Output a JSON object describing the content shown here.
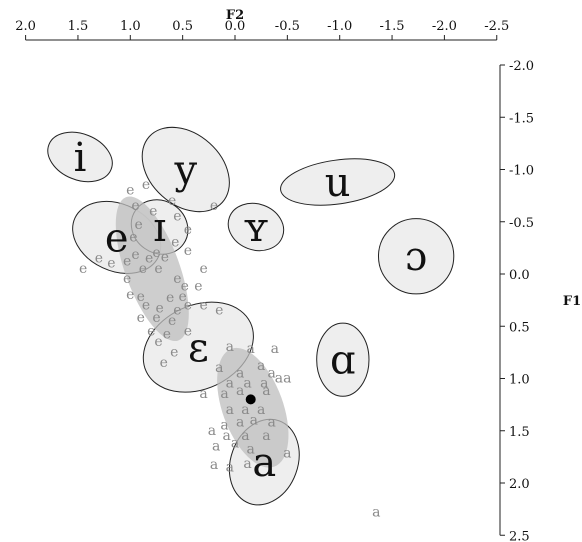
{
  "chart_data": {
    "type": "scatter",
    "title": "",
    "xlabel": "F2",
    "ylabel": "F1",
    "x_reversed": true,
    "y_reversed": true,
    "xlim": [
      2.0,
      -2.5
    ],
    "ylim": [
      -2.0,
      2.5
    ],
    "x_ticks": [
      "2.0",
      "1.5",
      "1.0",
      "0.5",
      "0.0",
      "-0.5",
      "-1.0",
      "-1.5",
      "-2.0",
      "-2.5"
    ],
    "y_ticks": [
      "-2.0",
      "-1.5",
      "-1.0",
      "-0.5",
      "0.0",
      "0.5",
      "1.0",
      "1.5",
      "2.0",
      "2.5"
    ],
    "x_tick_values": [
      2.0,
      1.5,
      1.0,
      0.5,
      0.0,
      -0.5,
      -1.0,
      -1.5,
      -2.0,
      -2.5
    ],
    "y_tick_values": [
      -2.0,
      -1.5,
      -1.0,
      -0.5,
      0.0,
      0.5,
      1.0,
      1.5,
      2.0,
      2.5
    ],
    "x_axis_position": "top",
    "y_axis_position": "right",
    "grid": false,
    "colors": {
      "reference_ellipse_fill": "#ebebeb",
      "token_ellipse_fill": "#bdbdbd",
      "token_color": "#8a8a8a",
      "mean_point": "#000000"
    },
    "vowels": [
      {
        "symbol": "i",
        "f2": 1.48,
        "f1": -1.12,
        "rx": 0.32,
        "ry": 0.22,
        "angle": 22
      },
      {
        "symbol": "y",
        "f2": 0.47,
        "f1": -1.0,
        "rx": 0.47,
        "ry": 0.34,
        "angle": 42
      },
      {
        "symbol": "e",
        "f2": 1.13,
        "f1": -0.35,
        "rx": 0.44,
        "ry": 0.32,
        "angle": 25
      },
      {
        "symbol": "ɪ",
        "f2": 0.72,
        "f1": -0.45,
        "rx": 0.28,
        "ry": 0.25,
        "angle": 35
      },
      {
        "symbol": "ʏ",
        "f2": -0.2,
        "f1": -0.45,
        "rx": 0.27,
        "ry": 0.22,
        "angle": 20
      },
      {
        "symbol": "u",
        "f2": -0.98,
        "f1": -0.88,
        "rx": 0.55,
        "ry": 0.21,
        "angle": -8
      },
      {
        "symbol": "ɔ",
        "f2": -1.73,
        "f1": -0.17,
        "rx": 0.36,
        "ry": 0.36,
        "angle": 0
      },
      {
        "symbol": "ɛ",
        "f2": 0.35,
        "f1": 0.7,
        "rx": 0.55,
        "ry": 0.4,
        "angle": -25
      },
      {
        "symbol": "ɑ",
        "f2": -1.03,
        "f1": 0.82,
        "rx": 0.25,
        "ry": 0.35,
        "angle": 0
      },
      {
        "symbol": "a",
        "f2": -0.28,
        "f1": 1.8,
        "rx": 0.32,
        "ry": 0.42,
        "angle": 20
      }
    ],
    "token_ellipses": [
      {
        "name": "e-tokens",
        "f2": 0.79,
        "f1": -0.05,
        "rx": 0.26,
        "ry": 0.73,
        "angle": -20
      },
      {
        "name": "a-tokens",
        "f2": -0.17,
        "f1": 1.28,
        "rx": 0.29,
        "ry": 0.6,
        "angle": -20
      }
    ],
    "mean_points": [
      {
        "name": "a-mean",
        "f2": -0.15,
        "f1": 1.2
      }
    ],
    "tokens": [
      {
        "label": "e",
        "f2": 1.0,
        "f1": -0.8
      },
      {
        "label": "e",
        "f2": 0.85,
        "f1": -0.85
      },
      {
        "label": "e",
        "f2": 0.6,
        "f1": -0.7
      },
      {
        "label": "e",
        "f2": 0.2,
        "f1": -0.65
      },
      {
        "label": "e",
        "f2": 0.95,
        "f1": -0.65
      },
      {
        "label": "e",
        "f2": 0.78,
        "f1": -0.6
      },
      {
        "label": "e",
        "f2": 0.92,
        "f1": -0.47
      },
      {
        "label": "e",
        "f2": 0.55,
        "f1": -0.55
      },
      {
        "label": "e",
        "f2": 0.45,
        "f1": -0.42
      },
      {
        "label": "e",
        "f2": 0.97,
        "f1": -0.35
      },
      {
        "label": "e",
        "f2": 0.57,
        "f1": -0.3
      },
      {
        "label": "e",
        "f2": 0.45,
        "f1": -0.22
      },
      {
        "label": "e",
        "f2": 1.3,
        "f1": -0.15
      },
      {
        "label": "e",
        "f2": 1.18,
        "f1": -0.1
      },
      {
        "label": "e",
        "f2": 1.03,
        "f1": -0.12
      },
      {
        "label": "e",
        "f2": 0.95,
        "f1": -0.18
      },
      {
        "label": "e",
        "f2": 0.82,
        "f1": -0.15
      },
      {
        "label": "e",
        "f2": 0.75,
        "f1": -0.2
      },
      {
        "label": "e",
        "f2": 0.67,
        "f1": -0.16
      },
      {
        "label": "e",
        "f2": 1.45,
        "f1": -0.05
      },
      {
        "label": "e",
        "f2": 0.88,
        "f1": -0.05
      },
      {
        "label": "e",
        "f2": 0.73,
        "f1": -0.05
      },
      {
        "label": "e",
        "f2": 0.3,
        "f1": -0.05
      },
      {
        "label": "e",
        "f2": 1.03,
        "f1": 0.05
      },
      {
        "label": "e",
        "f2": 0.55,
        "f1": 0.05
      },
      {
        "label": "e",
        "f2": 0.48,
        "f1": 0.12
      },
      {
        "label": "e",
        "f2": 0.35,
        "f1": 0.12
      },
      {
        "label": "e",
        "f2": 1.0,
        "f1": 0.2
      },
      {
        "label": "e",
        "f2": 0.9,
        "f1": 0.22
      },
      {
        "label": "e",
        "f2": 0.62,
        "f1": 0.23
      },
      {
        "label": "e",
        "f2": 0.5,
        "f1": 0.22
      },
      {
        "label": "e",
        "f2": 0.85,
        "f1": 0.3
      },
      {
        "label": "e",
        "f2": 0.72,
        "f1": 0.33
      },
      {
        "label": "e",
        "f2": 0.55,
        "f1": 0.35
      },
      {
        "label": "e",
        "f2": 0.45,
        "f1": 0.3
      },
      {
        "label": "e",
        "f2": 0.3,
        "f1": 0.3
      },
      {
        "label": "e",
        "f2": 0.15,
        "f1": 0.35
      },
      {
        "label": "e",
        "f2": 0.9,
        "f1": 0.42
      },
      {
        "label": "e",
        "f2": 0.75,
        "f1": 0.42
      },
      {
        "label": "e",
        "f2": 0.6,
        "f1": 0.45
      },
      {
        "label": "e",
        "f2": 0.8,
        "f1": 0.55
      },
      {
        "label": "e",
        "f2": 0.65,
        "f1": 0.58
      },
      {
        "label": "e",
        "f2": 0.45,
        "f1": 0.55
      },
      {
        "label": "e",
        "f2": 0.73,
        "f1": 0.65
      },
      {
        "label": "e",
        "f2": 0.58,
        "f1": 0.75
      },
      {
        "label": "e",
        "f2": 0.68,
        "f1": 0.85
      },
      {
        "label": "a",
        "f2": 0.05,
        "f1": 0.7
      },
      {
        "label": "a",
        "f2": -0.15,
        "f1": 0.72
      },
      {
        "label": "a",
        "f2": -0.38,
        "f1": 0.72
      },
      {
        "label": "a",
        "f2": 0.15,
        "f1": 0.9
      },
      {
        "label": "a",
        "f2": -0.05,
        "f1": 0.95
      },
      {
        "label": "a",
        "f2": -0.25,
        "f1": 0.88
      },
      {
        "label": "a",
        "f2": -0.35,
        "f1": 0.95
      },
      {
        "label": "a",
        "f2": -0.5,
        "f1": 1.0
      },
      {
        "label": "a",
        "f2": 0.05,
        "f1": 1.05
      },
      {
        "label": "a",
        "f2": -0.12,
        "f1": 1.05
      },
      {
        "label": "a",
        "f2": -0.28,
        "f1": 1.05
      },
      {
        "label": "a",
        "f2": -0.42,
        "f1": 1.0
      },
      {
        "label": "a",
        "f2": 0.3,
        "f1": 1.15
      },
      {
        "label": "a",
        "f2": 0.1,
        "f1": 1.15
      },
      {
        "label": "a",
        "f2": -0.05,
        "f1": 1.12
      },
      {
        "label": "a",
        "f2": -0.3,
        "f1": 1.12
      },
      {
        "label": "a",
        "f2": 0.05,
        "f1": 1.3
      },
      {
        "label": "a",
        "f2": -0.1,
        "f1": 1.3
      },
      {
        "label": "a",
        "f2": -0.25,
        "f1": 1.3
      },
      {
        "label": "a",
        "f2": 0.1,
        "f1": 1.45
      },
      {
        "label": "a",
        "f2": -0.05,
        "f1": 1.42
      },
      {
        "label": "a",
        "f2": -0.18,
        "f1": 1.4
      },
      {
        "label": "a",
        "f2": -0.35,
        "f1": 1.42
      },
      {
        "label": "a",
        "f2": 0.22,
        "f1": 1.5
      },
      {
        "label": "a",
        "f2": 0.08,
        "f1": 1.55
      },
      {
        "label": "a",
        "f2": -0.1,
        "f1": 1.55
      },
      {
        "label": "a",
        "f2": -0.3,
        "f1": 1.55
      },
      {
        "label": "a",
        "f2": 0.18,
        "f1": 1.65
      },
      {
        "label": "a",
        "f2": 0.0,
        "f1": 1.62
      },
      {
        "label": "a",
        "f2": -0.15,
        "f1": 1.68
      },
      {
        "label": "a",
        "f2": -0.5,
        "f1": 1.72
      },
      {
        "label": "a",
        "f2": 0.2,
        "f1": 1.83
      },
      {
        "label": "a",
        "f2": 0.05,
        "f1": 1.85
      },
      {
        "label": "a",
        "f2": -0.12,
        "f1": 1.82
      },
      {
        "label": "a",
        "f2": -1.35,
        "f1": 2.28
      }
    ]
  }
}
